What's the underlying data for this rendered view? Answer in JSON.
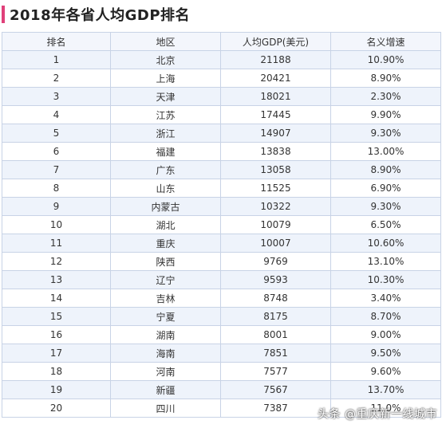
{
  "title": "2018年各省人均GDP排名",
  "table": {
    "headers": [
      "排名",
      "地区",
      "人均GDP(美元)",
      "名义增速"
    ],
    "rows": [
      [
        "1",
        "北京",
        "21188",
        "10.90%"
      ],
      [
        "2",
        "上海",
        "20421",
        "8.90%"
      ],
      [
        "3",
        "天津",
        "18021",
        "2.30%"
      ],
      [
        "4",
        "江苏",
        "17445",
        "9.90%"
      ],
      [
        "5",
        "浙江",
        "14907",
        "9.30%"
      ],
      [
        "6",
        "福建",
        "13838",
        "13.00%"
      ],
      [
        "7",
        "广东",
        "13058",
        "8.90%"
      ],
      [
        "8",
        "山东",
        "11525",
        "6.90%"
      ],
      [
        "9",
        "内蒙古",
        "10322",
        "9.30%"
      ],
      [
        "10",
        "湖北",
        "10079",
        "6.50%"
      ],
      [
        "11",
        "重庆",
        "10007",
        "10.60%"
      ],
      [
        "12",
        "陕西",
        "9769",
        "13.10%"
      ],
      [
        "13",
        "辽宁",
        "9593",
        "10.30%"
      ],
      [
        "14",
        "吉林",
        "8748",
        "3.40%"
      ],
      [
        "15",
        "宁夏",
        "8175",
        "8.70%"
      ],
      [
        "16",
        "湖南",
        "8001",
        "9.00%"
      ],
      [
        "17",
        "海南",
        "7851",
        "9.50%"
      ],
      [
        "18",
        "河南",
        "7577",
        "9.60%"
      ],
      [
        "19",
        "新疆",
        "7567",
        "13.70%"
      ],
      [
        "20",
        "四川",
        "7387",
        "11.0%"
      ]
    ]
  },
  "watermark": "头条 @重庆新一线城市",
  "colors": {
    "accent": "#e0407a",
    "border": "#c8d3e6",
    "row_alt": "#eef3fb"
  }
}
